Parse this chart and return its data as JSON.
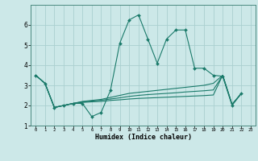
{
  "xlabel": "Humidex (Indice chaleur)",
  "bg_color": "#cce8e8",
  "line_color": "#1a7a6a",
  "grid_color": "#aacfcf",
  "xlim": [
    -0.5,
    23.5
  ],
  "ylim": [
    1,
    7
  ],
  "xtick_vals": [
    0,
    1,
    2,
    3,
    4,
    5,
    6,
    7,
    8,
    9,
    10,
    11,
    12,
    13,
    14,
    15,
    16,
    17,
    18,
    19,
    20,
    21,
    22,
    23
  ],
  "ytick_vals": [
    1,
    2,
    3,
    4,
    5,
    6
  ],
  "series0_x": [
    0,
    1,
    2,
    3,
    4,
    5,
    6,
    7,
    8,
    9,
    10,
    11,
    12,
    13,
    14,
    15,
    16,
    17,
    18,
    19,
    20,
    21,
    22
  ],
  "series0_y": [
    3.5,
    3.1,
    1.9,
    2.0,
    2.1,
    2.1,
    1.45,
    1.65,
    2.75,
    5.1,
    6.25,
    6.5,
    5.3,
    4.1,
    5.3,
    5.75,
    5.75,
    3.85,
    3.85,
    3.5,
    3.45,
    2.0,
    2.6
  ],
  "series1_x": [
    0,
    1,
    2,
    3,
    4,
    5,
    6,
    7,
    8,
    9,
    10,
    11,
    12,
    13,
    14,
    15,
    16,
    17,
    18,
    19,
    20,
    21,
    22
  ],
  "series1_y": [
    3.5,
    3.1,
    1.9,
    2.0,
    2.1,
    2.2,
    2.25,
    2.3,
    2.4,
    2.5,
    2.6,
    2.65,
    2.7,
    2.75,
    2.8,
    2.85,
    2.9,
    2.95,
    3.0,
    3.1,
    3.5,
    2.05,
    2.6
  ],
  "series2_x": [
    0,
    1,
    2,
    3,
    4,
    5,
    6,
    7,
    8,
    9,
    10,
    11,
    12,
    13,
    14,
    15,
    16,
    17,
    18,
    19,
    20,
    21,
    22
  ],
  "series2_y": [
    3.5,
    3.1,
    1.9,
    2.0,
    2.1,
    2.18,
    2.22,
    2.26,
    2.32,
    2.38,
    2.45,
    2.5,
    2.54,
    2.57,
    2.6,
    2.63,
    2.67,
    2.7,
    2.73,
    2.77,
    3.5,
    2.05,
    2.6
  ],
  "series3_x": [
    0,
    1,
    2,
    3,
    4,
    5,
    6,
    7,
    8,
    9,
    10,
    11,
    12,
    13,
    14,
    15,
    16,
    17,
    18,
    19,
    20,
    21,
    22
  ],
  "series3_y": [
    3.5,
    3.1,
    1.9,
    2.0,
    2.1,
    2.15,
    2.18,
    2.2,
    2.25,
    2.28,
    2.32,
    2.35,
    2.37,
    2.39,
    2.41,
    2.43,
    2.45,
    2.47,
    2.49,
    2.52,
    3.5,
    2.05,
    2.6
  ]
}
